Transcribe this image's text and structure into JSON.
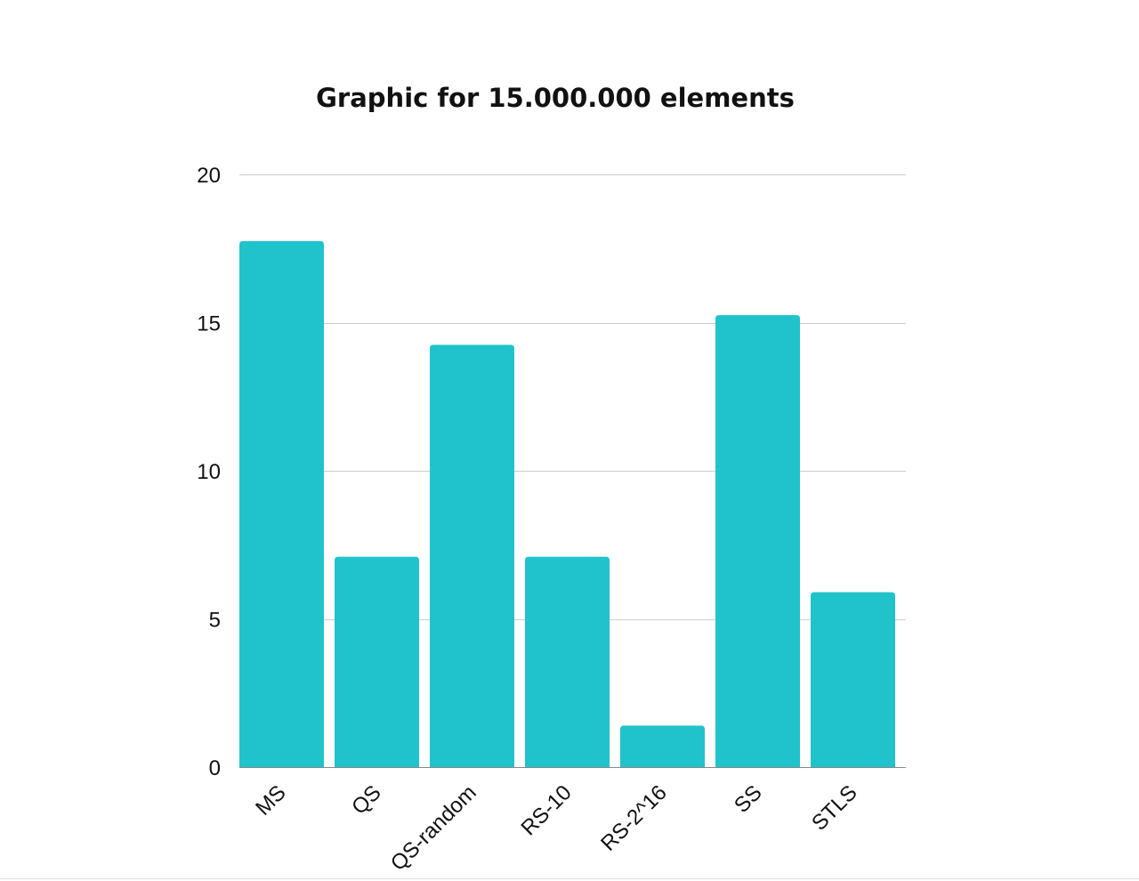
{
  "chart_data": {
    "type": "bar",
    "title": "Graphic for 15.000.000 elements",
    "xlabel": "",
    "ylabel": "",
    "categories": [
      "MS",
      "QS",
      "QS-random",
      "RS-10",
      "RS-2^16",
      "SS",
      "STLS"
    ],
    "values": [
      17.75,
      7.1,
      14.25,
      7.1,
      1.4,
      15.25,
      5.9
    ],
    "ylim": [
      0,
      20
    ],
    "yticks": [
      "0",
      "5",
      "10",
      "15",
      "20"
    ],
    "grid": true,
    "legend": "none",
    "colors": {
      "bar": "#21C3CB"
    }
  }
}
